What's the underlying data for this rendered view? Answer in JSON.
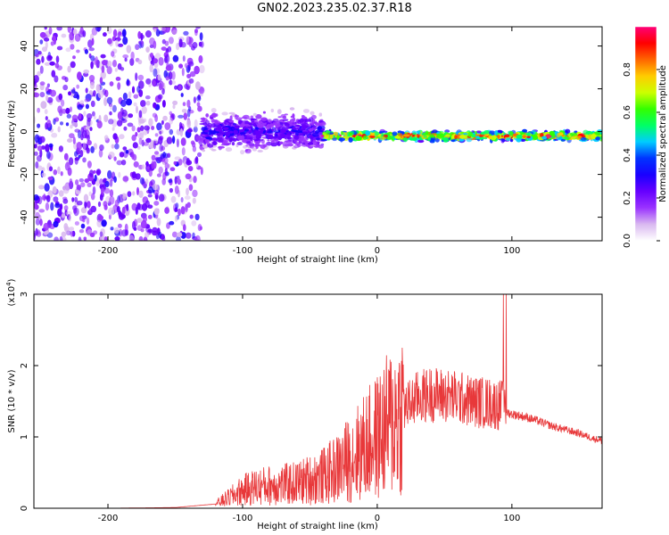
{
  "figure_title": "GN02.2023.235.02.37.R18",
  "colors": {
    "snr_line": "#e8383a",
    "axis": "#000000",
    "colormap": [
      "#ffffff",
      "#d9b8f0",
      "#9a33ff",
      "#6600ff",
      "#1a00ff",
      "#0033ff",
      "#00ccff",
      "#00ff66",
      "#33ff00",
      "#ccff00",
      "#ffcc00",
      "#ff6600",
      "#ff0000",
      "#ff0077"
    ]
  },
  "chart_data": [
    {
      "type": "heatmap",
      "title": "",
      "xlabel": "Height of straight line (km)",
      "ylabel": "Frequency (Hz)",
      "xlim": [
        -255,
        167
      ],
      "ylim": [
        -51,
        49
      ],
      "xticks": [
        -200,
        -100,
        0,
        100
      ],
      "xtick_labels": [
        "-200",
        "-100",
        "0",
        "100"
      ],
      "yticks": [
        -40,
        -20,
        0,
        20,
        40
      ],
      "ytick_labels": [
        "-40",
        "-20",
        "0",
        "20",
        "40"
      ],
      "regions": [
        {
          "x_from": -255,
          "x_to": -130,
          "description": "broadband noise",
          "amplitude": 0.15
        },
        {
          "x_from": -130,
          "x_to": -40,
          "center_hz": 0,
          "spread_hz": 12,
          "amplitude": 0.3
        },
        {
          "x_from": -40,
          "x_to": 167,
          "center_hz": -2,
          "spread_hz": 3,
          "amplitude": 0.9
        }
      ],
      "colorbar": {
        "label": "Normalized spectral amplitude",
        "range": [
          0,
          1
        ],
        "ticks": [
          0.0,
          0.2,
          0.4,
          0.6,
          0.8
        ],
        "tick_labels": [
          "0.0",
          "0.2",
          "0.4",
          "0.6",
          "0.8"
        ]
      },
      "grid": false
    },
    {
      "type": "line",
      "title": "",
      "xlabel": "Height of straight line (km)",
      "ylabel": "SNR (10 * v/v)",
      "y_multiplier": "(x10",
      "y_multiplier_exp": "4",
      "y_multiplier_close": ")",
      "xlim": [
        -255,
        167
      ],
      "ylim": [
        0,
        30000
      ],
      "xticks": [
        -200,
        -100,
        0,
        100
      ],
      "xtick_labels": [
        "-200",
        "-100",
        "0",
        "100"
      ],
      "yticks": [
        0,
        10000,
        20000,
        30000
      ],
      "ytick_labels": [
        "0",
        "1",
        "2",
        "3"
      ],
      "grid": false,
      "series": [
        {
          "x": [
            -255,
            -200,
            -150,
            -120,
            -110,
            -100,
            -90,
            -80,
            -70,
            -60,
            -50,
            -40,
            -30,
            -20,
            -10,
            0,
            10,
            20,
            30,
            40,
            50,
            60,
            70,
            80,
            90,
            95,
            96,
            100,
            110,
            120,
            130,
            140,
            150,
            160,
            167
          ],
          "y": [
            0,
            0,
            100,
            600,
            1500,
            2500,
            3000,
            3200,
            3300,
            3500,
            4000,
            4500,
            5500,
            7000,
            8500,
            10000,
            12000,
            14000,
            15500,
            16000,
            15800,
            15500,
            15000,
            14800,
            14500,
            14500,
            13500,
            13200,
            12800,
            12200,
            11500,
            11000,
            10500,
            9800,
            9500
          ]
        }
      ]
    }
  ]
}
